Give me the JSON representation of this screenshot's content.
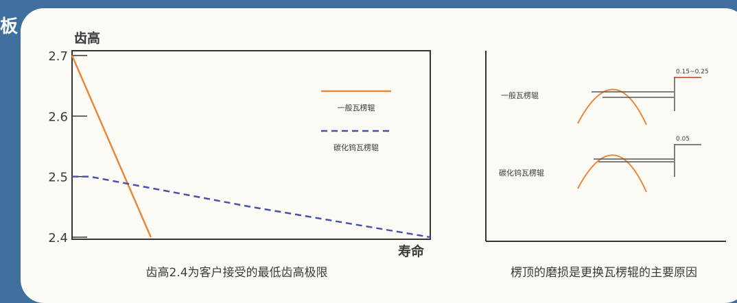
{
  "edge_char": "板",
  "chart_data": [
    {
      "type": "line",
      "ylabel": "齿高",
      "xlabel": "寿命",
      "caption": "齿高2.4为客户接受的最低齿高极限",
      "yticks": [
        "2.7",
        "2.6",
        "2.5",
        "2.4"
      ],
      "ylim": [
        2.4,
        2.7
      ],
      "xlim": [
        0,
        1
      ],
      "legend_position": "top-right",
      "series": [
        {
          "name": "一般瓦楞辊",
          "color": "#e8873a",
          "style": "solid",
          "x": [
            0,
            0.22
          ],
          "y": [
            2.7,
            2.4
          ]
        },
        {
          "name": "碳化钨瓦楞辊",
          "color": "#4a4fa8",
          "style": "dashed",
          "x": [
            0,
            0.05,
            0.5,
            1.0
          ],
          "y": [
            2.5,
            2.5,
            2.45,
            2.4
          ]
        }
      ]
    },
    {
      "type": "diagram",
      "caption": "楞顶的磨损是更换瓦楞辊的主要原因",
      "items": [
        {
          "label": "一般瓦楞辊",
          "wear": "0.15~0.25"
        },
        {
          "label": "碳化钨瓦楞辊",
          "wear": "0.05"
        }
      ]
    }
  ]
}
